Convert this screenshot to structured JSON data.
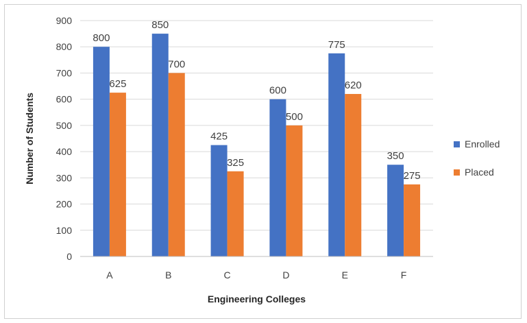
{
  "chart_data": {
    "type": "bar",
    "title": "",
    "xlabel": "Engineering Colleges",
    "ylabel": "Number of Students",
    "categories": [
      "A",
      "B",
      "C",
      "D",
      "E",
      "F"
    ],
    "series": [
      {
        "name": "Enrolled",
        "color": "#4472C4",
        "values": [
          800,
          850,
          425,
          600,
          775,
          350
        ]
      },
      {
        "name": "Placed",
        "color": "#ED7D31",
        "values": [
          625,
          700,
          325,
          500,
          620,
          275
        ]
      }
    ],
    "ylim": [
      0,
      900
    ],
    "yticks": [
      0,
      100,
      200,
      300,
      400,
      500,
      600,
      700,
      800,
      900
    ],
    "grid": true,
    "legend": "right"
  }
}
